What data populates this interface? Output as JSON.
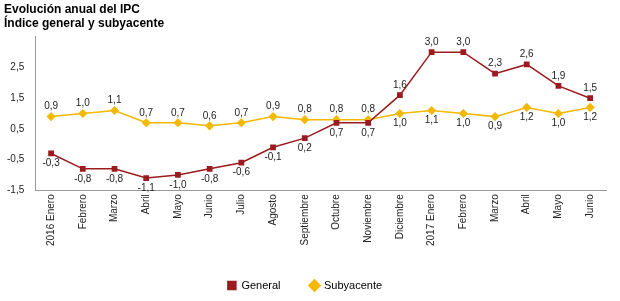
{
  "chart_data": {
    "type": "line",
    "title": "Evolución anual del IPC",
    "subtitle": "Índice general y subyacente",
    "categories": [
      "2016 Enero",
      "Febrero",
      "Marzo",
      "Abril",
      "Mayo",
      "Junio",
      "Julio",
      "Agosto",
      "Septiembre",
      "Octubre",
      "Noviembre",
      "Diciembre",
      "2017 Enero",
      "Febrero",
      "Marzo",
      "Abril",
      "Mayo",
      "Junio"
    ],
    "series": [
      {
        "name": "General",
        "color": "#9b1b1f",
        "marker": "square",
        "line_style": "solid",
        "values": [
          -0.3,
          -0.8,
          -0.8,
          -1.1,
          -1.0,
          -0.8,
          -0.6,
          -0.1,
          0.2,
          0.7,
          0.7,
          1.6,
          3.0,
          3.0,
          2.3,
          2.6,
          1.9,
          1.5
        ],
        "value_labels": [
          "-0,3",
          "-0,8",
          "-0,8",
          "-1,1",
          "-1,0",
          "-0,8",
          "-0,6",
          "-0,1",
          "0,2",
          "0,7",
          "0,7",
          "1,6",
          "3,0",
          "3,0",
          "2,3",
          "2,6",
          "1,9",
          "1,5"
        ]
      },
      {
        "name": "Subyacente",
        "color": "#f5b800",
        "marker": "diamond",
        "line_style": "solid",
        "values": [
          0.9,
          1.0,
          1.1,
          0.7,
          0.7,
          0.6,
          0.7,
          0.9,
          0.8,
          0.8,
          0.8,
          1.0,
          1.1,
          1.0,
          0.9,
          1.2,
          1.0,
          1.2
        ],
        "value_labels": [
          "0,9",
          "1,0",
          "1,1",
          "0,7",
          "0,7",
          "0,6",
          "0,7",
          "0,9",
          "0,8",
          "0,8",
          "0,8",
          "1,0",
          "1,1",
          "1,0",
          "0,9",
          "1,2",
          "1,0",
          "1,2"
        ]
      }
    ],
    "ylim": [
      -1.5,
      3.5
    ],
    "yticks": [
      {
        "value": -1.5,
        "label": "-1,5"
      },
      {
        "value": -0.5,
        "label": "-0,5"
      },
      {
        "value": 0.5,
        "label": "0,5"
      },
      {
        "value": 1.5,
        "label": "1,5"
      },
      {
        "value": 2.5,
        "label": "2,5"
      }
    ],
    "grid": false,
    "legend": "bottom",
    "data_labels": true
  }
}
